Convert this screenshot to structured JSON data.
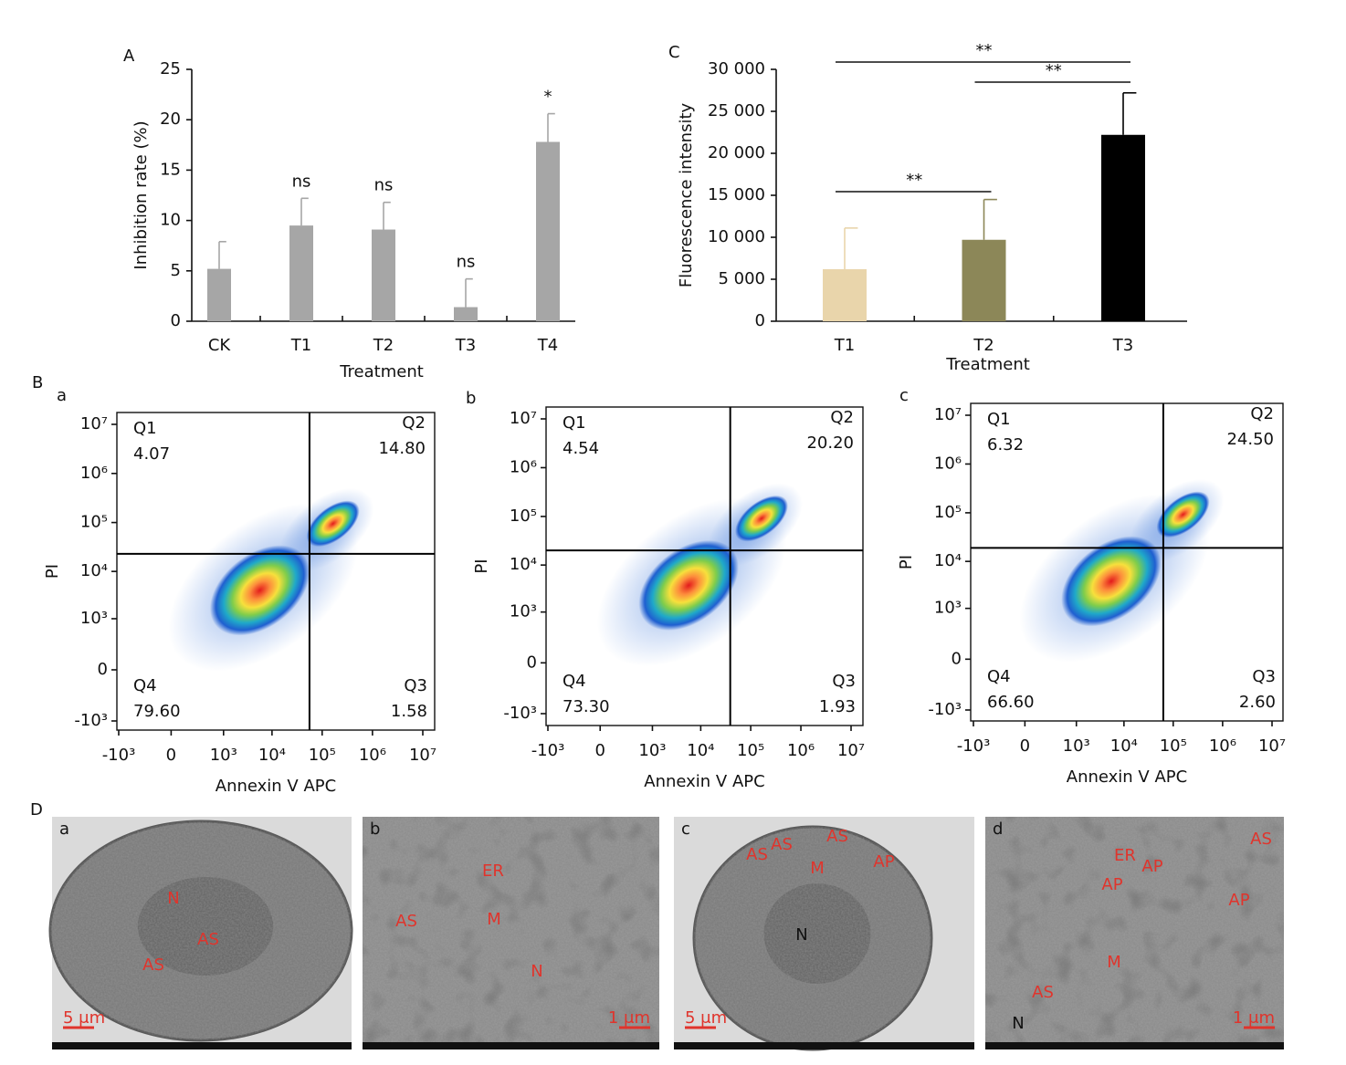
{
  "chart_data": [
    {
      "type": "bar",
      "panel": "A",
      "x_label": "Treatment",
      "y_label": "Inhibition rate (%)",
      "categories": [
        "CK",
        "T1",
        "T2",
        "T3",
        "T4"
      ],
      "values": [
        5.2,
        9.5,
        9.1,
        1.4,
        17.8
      ],
      "errors": [
        2.7,
        2.7,
        2.7,
        2.8,
        2.8
      ],
      "significance": [
        null,
        "ns",
        "ns",
        "ns",
        "*"
      ],
      "color": "#a6a6a6",
      "ylim": [
        0,
        25
      ],
      "yticks": [
        0,
        5,
        10,
        15,
        20,
        25
      ]
    },
    {
      "type": "bar",
      "panel": "C",
      "x_label": "Treatment",
      "y_label": "Fluorescence intensity",
      "categories": [
        "T1",
        "T2",
        "T3"
      ],
      "values": [
        6200,
        9700,
        22200
      ],
      "errors": [
        4900,
        4800,
        5000
      ],
      "colors": [
        "#e9d5ab",
        "#8c8758",
        "#000000"
      ],
      "ylim": [
        0,
        30000
      ],
      "yticks": [
        0,
        {
          "value": 5000,
          "label": "5 000"
        },
        {
          "value": 10000,
          "label": "10 000"
        },
        {
          "value": 15000,
          "label": "15 000"
        },
        {
          "value": 20000,
          "label": "20 000"
        },
        {
          "value": 25000,
          "label": "25 000"
        },
        {
          "value": 30000,
          "label": "30 000"
        }
      ],
      "comparisons": [
        {
          "from": "T1",
          "to": "T2",
          "label": "**"
        },
        {
          "from": "T2",
          "to": "T3",
          "label": "**"
        },
        {
          "from": "T1",
          "to": "T3",
          "label": "**"
        }
      ]
    },
    {
      "type": "flow",
      "group_label": "B",
      "panel": "a",
      "x_label": "Annexin V APC",
      "y_label": "PI",
      "scale": "biexponential",
      "xlim": [
        -1000,
        10000000
      ],
      "ylim": [
        -1000,
        10000000
      ],
      "xticks": [
        {
          "value": -1000,
          "label": "-10³"
        },
        0,
        {
          "value": 1000,
          "label": "10³"
        },
        {
          "value": 10000,
          "label": "10⁴"
        },
        {
          "value": 100000,
          "label": "10⁵"
        },
        {
          "value": 1000000,
          "label": "10⁶"
        },
        {
          "value": 10000000,
          "label": "10⁷"
        }
      ],
      "yticks": [
        {
          "value": -1000,
          "label": "-10³"
        },
        0,
        {
          "value": 1000,
          "label": "10³"
        },
        {
          "value": 10000,
          "label": "10⁴"
        },
        {
          "value": 100000,
          "label": "10⁵"
        },
        {
          "value": 1000000,
          "label": "10⁶"
        },
        {
          "value": 10000000,
          "label": "10⁷"
        }
      ],
      "gate": {
        "x": 56000,
        "y": 23000
      },
      "quadrants": {
        "names": [
          "Q1",
          "Q2",
          "Q3",
          "Q4"
        ],
        "values": [
          4.07,
          14.8,
          1.58,
          79.6
        ],
        "value_labels": [
          "4.07",
          "14.80",
          "1.58",
          "79.60"
        ]
      }
    },
    {
      "type": "flow",
      "panel": "b",
      "x_label": "Annexin V APC",
      "y_label": "PI",
      "scale": "biexponential",
      "xlim": [
        -1000,
        10000000
      ],
      "ylim": [
        -1000,
        10000000
      ],
      "xticks": [
        {
          "value": -1000,
          "label": "-10³"
        },
        0,
        {
          "value": 1000,
          "label": "10³"
        },
        {
          "value": 10000,
          "label": "10⁴"
        },
        {
          "value": 100000,
          "label": "10⁵"
        },
        {
          "value": 1000000,
          "label": "10⁶"
        },
        {
          "value": 10000000,
          "label": "10⁷"
        }
      ],
      "yticks": [
        {
          "value": -1000,
          "label": "-10³"
        },
        0,
        {
          "value": 1000,
          "label": "10³"
        },
        {
          "value": 10000,
          "label": "10⁴"
        },
        {
          "value": 100000,
          "label": "10⁵"
        },
        {
          "value": 1000000,
          "label": "10⁶"
        },
        {
          "value": 10000000,
          "label": "10⁷"
        }
      ],
      "gate": {
        "x": 39000,
        "y": 20000
      },
      "quadrants": {
        "names": [
          "Q1",
          "Q2",
          "Q3",
          "Q4"
        ],
        "values": [
          4.54,
          20.2,
          1.93,
          73.3
        ],
        "value_labels": [
          "4.54",
          "20.20",
          "1.93",
          "73.30"
        ]
      }
    },
    {
      "type": "flow",
      "panel": "c",
      "x_label": "Annexin V APC",
      "y_label": "PI",
      "scale": "biexponential",
      "xlim": [
        -1000,
        10000000
      ],
      "ylim": [
        -1000,
        10000000
      ],
      "xticks": [
        {
          "value": -1000,
          "label": "-10³"
        },
        0,
        {
          "value": 1000,
          "label": "10³"
        },
        {
          "value": 10000,
          "label": "10⁴"
        },
        {
          "value": 100000,
          "label": "10⁵"
        },
        {
          "value": 1000000,
          "label": "10⁶"
        },
        {
          "value": 10000000,
          "label": "10⁷"
        }
      ],
      "yticks": [
        {
          "value": -1000,
          "label": "-10³"
        },
        0,
        {
          "value": 1000,
          "label": "10³"
        },
        {
          "value": 10000,
          "label": "10⁴"
        },
        {
          "value": 100000,
          "label": "10⁵"
        },
        {
          "value": 1000000,
          "label": "10⁶"
        },
        {
          "value": 10000000,
          "label": "10⁷"
        }
      ],
      "gate": {
        "x": 63000,
        "y": 19000
      },
      "quadrants": {
        "names": [
          "Q1",
          "Q2",
          "Q3",
          "Q4"
        ],
        "values": [
          6.32,
          24.5,
          2.6,
          66.6
        ],
        "value_labels": [
          "6.32",
          "24.50",
          "2.60",
          "66.60"
        ]
      }
    }
  ],
  "micrographs": {
    "group_label": "D",
    "panels": [
      {
        "label": "a",
        "scale_bar": "5 μm",
        "annotations": [
          "N",
          "AS",
          "AS"
        ]
      },
      {
        "label": "b",
        "scale_bar": "1 μm",
        "annotations": [
          "ER",
          "AS",
          "M",
          "N"
        ]
      },
      {
        "label": "c",
        "scale_bar": "5 μm",
        "annotations": [
          "AS",
          "AS",
          "AS",
          "M",
          "AP",
          "N"
        ]
      },
      {
        "label": "d",
        "scale_bar": "1 μm",
        "annotations": [
          "ER",
          "AP",
          "AP",
          "AS",
          "AP",
          "M",
          "AS",
          "N"
        ]
      }
    ]
  }
}
